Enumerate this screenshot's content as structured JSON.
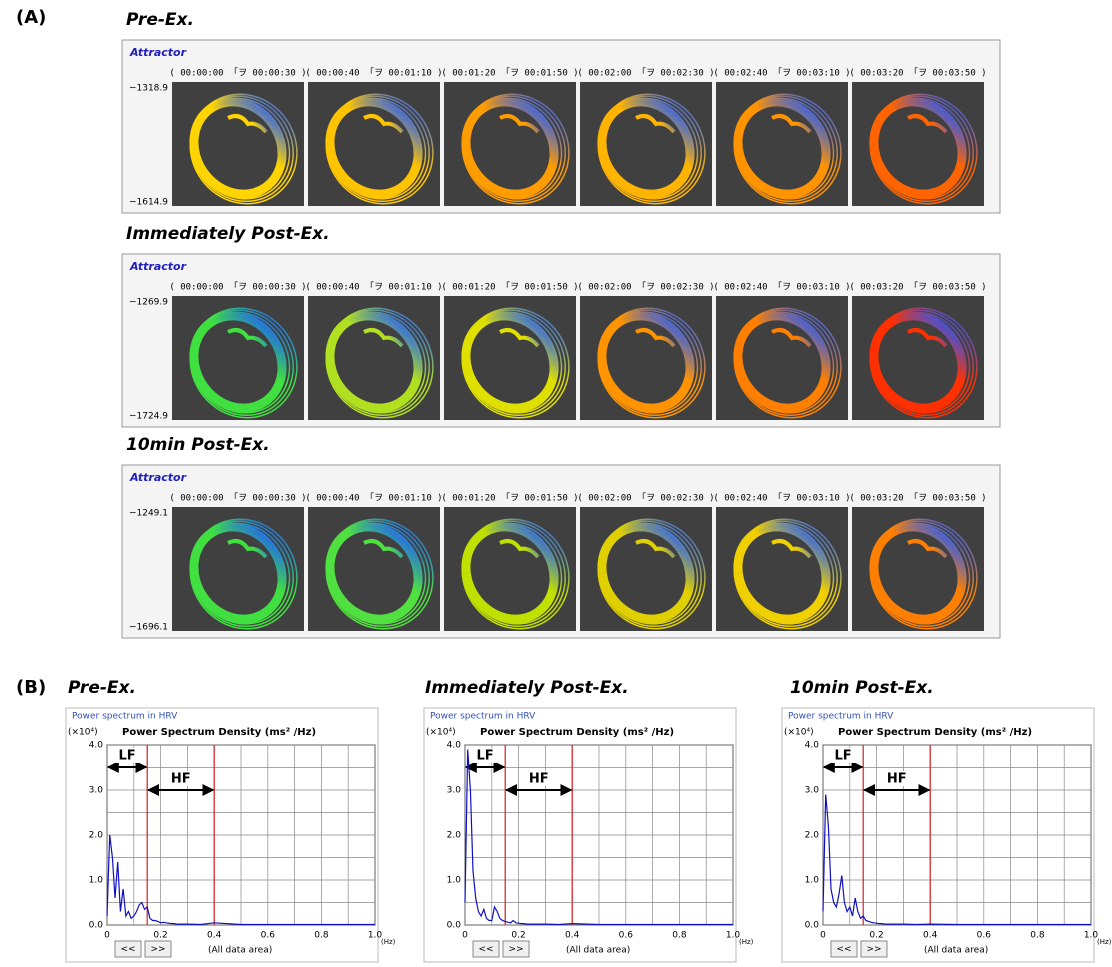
{
  "panel_a": {
    "label": "(A)",
    "groups": [
      {
        "title": "Pre-Ex.",
        "header": "Attractor",
        "ymax_label": "−1318.9",
        "ymin_label": "−1614.9",
        "times": [
          "( 00:00:00 「ヲ 00:00:30 )",
          "( 00:00:40 「ヲ 00:01:10 )",
          "( 00:01:20 「ヲ 00:01:50 )",
          "( 00:02:00 「ヲ 00:02:30 )",
          "( 00:02:40 「ヲ 00:03:10 )",
          "( 00:03:20 「ヲ 00:03:50 )"
        ]
      },
      {
        "title": "Immediately Post-Ex.",
        "header": "Attractor",
        "ymax_label": "−1269.9",
        "ymin_label": "−1724.9",
        "times": [
          "( 00:00:00 「ヲ 00:00:30 )",
          "( 00:00:40 「ヲ 00:01:10 )",
          "( 00:01:20 「ヲ 00:01:50 )",
          "( 00:02:00 「ヲ 00:02:30 )",
          "( 00:02:40 「ヲ 00:03:10 )",
          "( 00:03:20 「ヲ 00:03:50 )"
        ]
      },
      {
        "title": "10min Post-Ex.",
        "header": "Attractor",
        "ymax_label": "−1249.1",
        "ymin_label": "−1696.1",
        "times": [
          "( 00:00:00 「ヲ 00:00:30 )",
          "( 00:00:40 「ヲ 00:01:10 )",
          "( 00:01:20 「ヲ 00:01:50 )",
          "( 00:02:00 「ヲ 00:02:30 )",
          "( 00:02:40 「ヲ 00:03:10 )",
          "( 00:03:20 「ヲ 00:03:50 )"
        ]
      }
    ]
  },
  "panel_b": {
    "label": "(B)"
  },
  "chart_data": [
    {
      "type": "line",
      "title": "Pre-Ex.",
      "box_label": "Power spectrum in HRV",
      "y_unit": "(×10⁴)",
      "y_title": "Power Spectrum Density (ms² /Hz)",
      "x_unit": "(Hz)",
      "buttons": [
        "<<",
        ">>"
      ],
      "range_label": "(All data area)",
      "color": "#1010c0",
      "band_color": "#d02020",
      "grid": true,
      "x": [
        0,
        0.01,
        0.02,
        0.03,
        0.04,
        0.05,
        0.06,
        0.07,
        0.08,
        0.09,
        0.1,
        0.11,
        0.12,
        0.13,
        0.14,
        0.15,
        0.16,
        0.17,
        0.18,
        0.19,
        0.2,
        0.21,
        0.22,
        0.23,
        0.24,
        0.25,
        0.26,
        0.27,
        0.28,
        0.29,
        0.3,
        0.35,
        0.4,
        0.5,
        0.6,
        0.7,
        0.8,
        0.9,
        1
      ],
      "values": [
        0.2,
        2.0,
        1.5,
        0.6,
        1.4,
        0.3,
        0.8,
        0.2,
        0.3,
        0.15,
        0.2,
        0.3,
        0.45,
        0.5,
        0.35,
        0.4,
        0.15,
        0.1,
        0.1,
        0.08,
        0.05,
        0.06,
        0.05,
        0.04,
        0.03,
        0.03,
        0.02,
        0.02,
        0.02,
        0.02,
        0.02,
        0.01,
        0.05,
        0.01,
        0.01,
        0.01,
        0.01,
        0.01,
        0.01
      ],
      "xlim": [
        0,
        1
      ],
      "xticks": [
        0,
        0.2,
        0.4,
        0.6,
        0.8,
        {
          "value": 1,
          "label": "1.0"
        }
      ],
      "ylim": [
        0,
        4
      ],
      "yticks": [
        {
          "value": 0,
          "label": "0.0"
        },
        {
          "value": 1,
          "label": "1.0"
        },
        {
          "value": 2,
          "label": "2.0"
        },
        {
          "value": 3,
          "label": "3.0"
        },
        {
          "value": 4,
          "label": "4.0"
        }
      ],
      "bands": [
        {
          "label": "LF",
          "range": [
            0,
            0.15
          ]
        },
        {
          "label": "HF",
          "range": [
            0.15,
            0.4
          ]
        }
      ]
    },
    {
      "type": "line",
      "title": "Immediately Post-Ex.",
      "box_label": "Power spectrum in HRV",
      "y_unit": "(×10⁴)",
      "y_title": "Power Spectrum Density (ms² /Hz)",
      "x_unit": "(Hz)",
      "buttons": [
        "<<",
        ">>"
      ],
      "range_label": "(All data area)",
      "color": "#1010c0",
      "band_color": "#d02020",
      "grid": true,
      "x": [
        0,
        0.01,
        0.02,
        0.03,
        0.04,
        0.05,
        0.06,
        0.07,
        0.08,
        0.09,
        0.1,
        0.11,
        0.12,
        0.13,
        0.14,
        0.15,
        0.16,
        0.17,
        0.18,
        0.19,
        0.2,
        0.21,
        0.22,
        0.23,
        0.24,
        0.25,
        0.26,
        0.27,
        0.28,
        0.29,
        0.3,
        0.35,
        0.4,
        0.5,
        0.6,
        0.7,
        0.8,
        0.9,
        1
      ],
      "values": [
        0.5,
        3.9,
        3.0,
        1.2,
        0.6,
        0.3,
        0.2,
        0.35,
        0.15,
        0.1,
        0.1,
        0.4,
        0.3,
        0.15,
        0.1,
        0.08,
        0.06,
        0.05,
        0.1,
        0.05,
        0.04,
        0.03,
        0.03,
        0.02,
        0.02,
        0.02,
        0.02,
        0.02,
        0.02,
        0.02,
        0.02,
        0.01,
        0.03,
        0.01,
        0.01,
        0.01,
        0.01,
        0.01,
        0.01
      ],
      "xlim": [
        0,
        1
      ],
      "xticks": [
        0,
        0.2,
        0.4,
        0.6,
        0.8,
        {
          "value": 1,
          "label": "1.0"
        }
      ],
      "ylim": [
        0,
        4
      ],
      "yticks": [
        {
          "value": 0,
          "label": "0.0"
        },
        {
          "value": 1,
          "label": "1.0"
        },
        {
          "value": 2,
          "label": "2.0"
        },
        {
          "value": 3,
          "label": "3.0"
        },
        {
          "value": 4,
          "label": "4.0"
        }
      ],
      "bands": [
        {
          "label": "LF",
          "range": [
            0,
            0.15
          ]
        },
        {
          "label": "HF",
          "range": [
            0.15,
            0.4
          ]
        }
      ]
    },
    {
      "type": "line",
      "title": "10min Post-Ex.",
      "box_label": "Power spectrum in HRV",
      "y_unit": "(×10⁴)",
      "y_title": "Power Spectrum Density (ms² /Hz)",
      "x_unit": "(Hz)",
      "buttons": [
        "<<",
        ">>"
      ],
      "range_label": "(All data area)",
      "color": "#1010c0",
      "band_color": "#d02020",
      "grid": true,
      "x": [
        0,
        0.01,
        0.02,
        0.03,
        0.04,
        0.05,
        0.06,
        0.07,
        0.08,
        0.09,
        0.1,
        0.11,
        0.12,
        0.13,
        0.14,
        0.15,
        0.16,
        0.17,
        0.18,
        0.19,
        0.2,
        0.21,
        0.22,
        0.23,
        0.24,
        0.25,
        0.26,
        0.27,
        0.28,
        0.29,
        0.3,
        0.35,
        0.4,
        0.5,
        0.6,
        0.7,
        0.8,
        0.9,
        1
      ],
      "values": [
        0.3,
        2.9,
        2.2,
        0.8,
        0.5,
        0.4,
        0.7,
        1.1,
        0.5,
        0.3,
        0.4,
        0.2,
        0.6,
        0.3,
        0.15,
        0.2,
        0.1,
        0.08,
        0.06,
        0.05,
        0.04,
        0.03,
        0.03,
        0.02,
        0.02,
        0.02,
        0.02,
        0.02,
        0.02,
        0.02,
        0.02,
        0.01,
        0.02,
        0.01,
        0.01,
        0.01,
        0.01,
        0.01,
        0.01
      ],
      "xlim": [
        0,
        1
      ],
      "xticks": [
        0,
        0.2,
        0.4,
        0.6,
        0.8,
        {
          "value": 1,
          "label": "1.0"
        }
      ],
      "ylim": [
        0,
        4
      ],
      "yticks": [
        {
          "value": 0,
          "label": "0.0"
        },
        {
          "value": 1,
          "label": "1.0"
        },
        {
          "value": 2,
          "label": "2.0"
        },
        {
          "value": 3,
          "label": "3.0"
        },
        {
          "value": 4,
          "label": "4.0"
        }
      ],
      "bands": [
        {
          "label": "LF",
          "range": [
            0,
            0.15
          ]
        },
        {
          "label": "HF",
          "range": [
            0.15,
            0.4
          ]
        }
      ]
    }
  ]
}
